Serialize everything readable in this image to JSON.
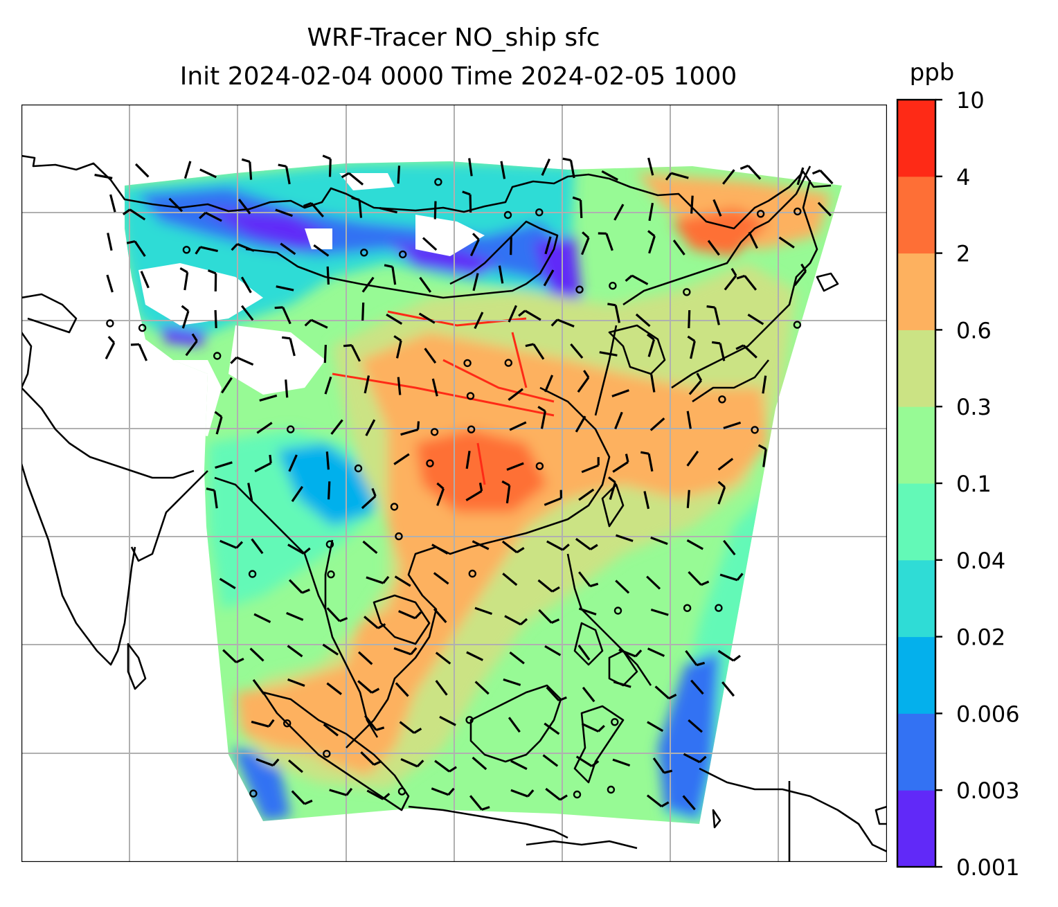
{
  "title": {
    "line1": "WRF-Tracer NO_ship sfc",
    "line2": "Init 2024-02-04 0000 Time 2024-02-05 1000"
  },
  "colorbar": {
    "unit": "ppb",
    "levels": [
      "0.001",
      "0.003",
      "0.006",
      "0.02",
      "0.04",
      "0.1",
      "0.3",
      "0.6",
      "2",
      "4",
      "10"
    ],
    "colors": [
      "#6129f8",
      "#3372f3",
      "#04b0ec",
      "#2fdcd6",
      "#63f9b7",
      "#97fa95",
      "#cbe384",
      "#fdb15f",
      "#fe6f36",
      "#fe2a16"
    ]
  },
  "map": {
    "gridlines": true,
    "coastline_color": "#000000",
    "grid_color": "#b0b0b0",
    "no_data_color": "#ffffff",
    "wind_symbol_color": "#000000"
  }
}
